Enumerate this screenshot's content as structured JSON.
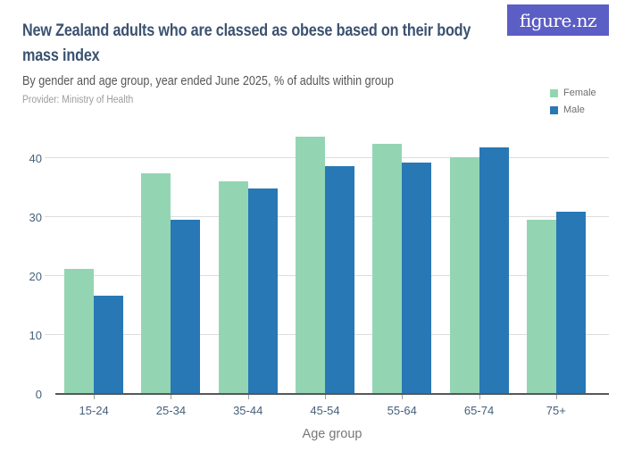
{
  "brand": {
    "logo_text": "figure.nz",
    "logo_bg": "#5B5EC5"
  },
  "header": {
    "title": "New Zealand adults who are classed as obese based on their body mass index",
    "subtitle": "By gender and age group, year ended June 2025, % of adults within group",
    "provider": "Provider: Ministry of Health"
  },
  "chart_data": {
    "type": "bar",
    "title": "New Zealand adults who are classed as obese based on their body mass index",
    "subtitle": "By gender and age group, year ended June 2025, % of adults within group",
    "categories": [
      "15-24",
      "25-34",
      "35-44",
      "45-54",
      "55-64",
      "65-74",
      "75+"
    ],
    "series": [
      {
        "name": "Female",
        "color": "#93D5B3",
        "values": [
          21.1,
          37.4,
          35.9,
          43.6,
          42.3,
          40.0,
          29.4
        ]
      },
      {
        "name": "Male",
        "color": "#2878B5",
        "values": [
          16.5,
          29.4,
          34.8,
          38.5,
          39.2,
          41.8,
          30.8
        ]
      }
    ],
    "xlabel": "Age group",
    "ylabel": "",
    "ylim": [
      0,
      44
    ],
    "yticks": [
      0,
      10,
      20,
      30,
      40
    ],
    "grid": true,
    "legend_position": "top-right",
    "bar_colors": {
      "Female": "#93D5B3",
      "Male": "#2878B5"
    },
    "axis_text_color": "#46607A",
    "gridline_color": "#DDDDDD"
  }
}
